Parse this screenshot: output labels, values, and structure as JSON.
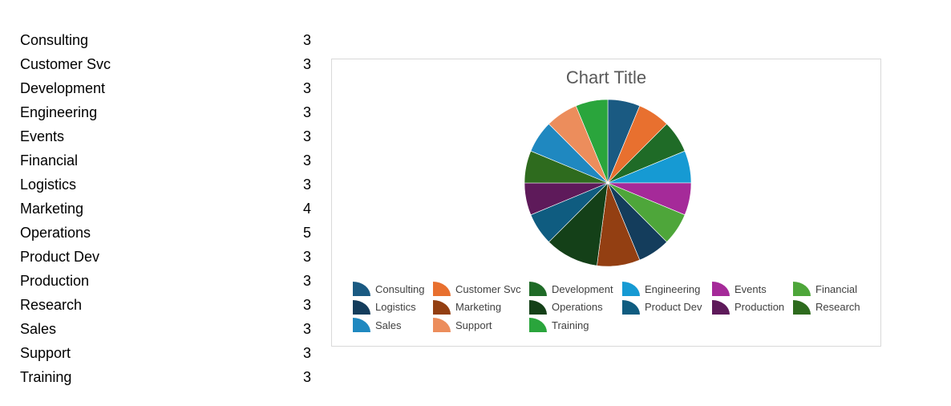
{
  "table": {
    "rows": [
      {
        "label": "Consulting",
        "value": 3
      },
      {
        "label": "Customer Svc",
        "value": 3
      },
      {
        "label": "Development",
        "value": 3
      },
      {
        "label": "Engineering",
        "value": 3
      },
      {
        "label": "Events",
        "value": 3
      },
      {
        "label": "Financial",
        "value": 3
      },
      {
        "label": "Logistics",
        "value": 3
      },
      {
        "label": "Marketing",
        "value": 4
      },
      {
        "label": "Operations",
        "value": 5
      },
      {
        "label": "Product Dev",
        "value": 3
      },
      {
        "label": "Production",
        "value": 3
      },
      {
        "label": "Research",
        "value": 3
      },
      {
        "label": "Sales",
        "value": 3
      },
      {
        "label": "Support",
        "value": 3
      },
      {
        "label": "Training",
        "value": 3
      }
    ]
  },
  "chart_data": {
    "type": "pie",
    "title": "Chart Title",
    "categories": [
      "Consulting",
      "Customer Svc",
      "Development",
      "Engineering",
      "Events",
      "Financial",
      "Logistics",
      "Marketing",
      "Operations",
      "Product Dev",
      "Production",
      "Research",
      "Sales",
      "Support",
      "Training"
    ],
    "values": [
      3,
      3,
      3,
      3,
      3,
      3,
      3,
      4,
      5,
      3,
      3,
      3,
      3,
      3,
      3
    ],
    "colors": [
      "#1a5a82",
      "#e8702f",
      "#1f6b27",
      "#169ad3",
      "#a52a99",
      "#4ea63a",
      "#143d5c",
      "#933f12",
      "#144018",
      "#0f5c80",
      "#5e1a5a",
      "#2e6b1e",
      "#1f88c0",
      "#ec8d5c",
      "#2aa53c"
    ],
    "legend": "bottom"
  }
}
